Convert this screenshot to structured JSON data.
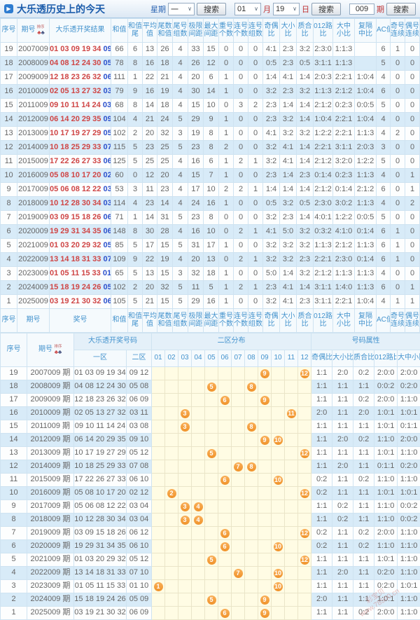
{
  "page": {
    "title": "大乐透历史上的今天",
    "logo_glyph": "▶"
  },
  "controls": {
    "week_label": "星期",
    "week_value": "一",
    "month_value": "01",
    "month_label": "月",
    "day_value": "19",
    "day_label": "日",
    "issue_value": "009",
    "issue_label": "期",
    "search_label": "搜索",
    "sort_label": "排序"
  },
  "table1": {
    "headers": [
      [
        "序号"
      ],
      [
        "期号"
      ],
      [
        "大乐透开奖结果"
      ],
      [
        "和值"
      ],
      [
        "和值",
        "尾"
      ],
      [
        "平均",
        "值"
      ],
      [
        "尾数",
        "和值"
      ],
      [
        "尾号",
        "组数"
      ],
      [
        "极限",
        "间距"
      ],
      [
        "最大",
        "间距"
      ],
      [
        "重号",
        "个数"
      ],
      [
        "连号",
        "个数"
      ],
      [
        "连号",
        "组数"
      ],
      [
        "奇偶",
        "比"
      ],
      [
        "大小",
        "比"
      ],
      [
        "质合",
        "比"
      ],
      [
        "012路",
        "比"
      ],
      [
        "大中",
        "小比"
      ],
      [
        "复隔",
        "中比"
      ],
      [
        "AC值"
      ],
      [
        "奇号",
        "连续"
      ],
      [
        "偶号",
        "连续"
      ]
    ],
    "footer_headers": [
      [
        "序号"
      ],
      [
        "期号"
      ],
      [
        "奖号"
      ],
      [
        "和值"
      ],
      [
        "和值",
        "尾"
      ],
      [
        "平均",
        "值"
      ],
      [
        "尾数",
        "和值"
      ],
      [
        "尾号",
        "组数"
      ],
      [
        "极限",
        "间距"
      ],
      [
        "最大",
        "间距"
      ],
      [
        "重号",
        "个数"
      ],
      [
        "连号",
        "个数"
      ],
      [
        "连号",
        "组数"
      ],
      [
        "奇偶",
        "比"
      ],
      [
        "大小",
        "比"
      ],
      [
        "质合",
        "比"
      ],
      [
        "012路",
        "比"
      ],
      [
        "大中",
        "小比"
      ],
      [
        "复隔",
        "中比"
      ],
      [
        "AC值"
      ],
      [
        "奇号",
        "连续"
      ],
      [
        "偶号",
        "连续"
      ]
    ],
    "rows": [
      {
        "seq": "19",
        "period": "2007009",
        "front": "01 03 09 19 34",
        "back": "09 12",
        "vals": [
          "66",
          "6",
          "13",
          "26",
          "4",
          "33",
          "15",
          "0",
          "0",
          "0",
          "4:1",
          "2:3",
          "3:2",
          "2:3:0",
          "1:1:3",
          "",
          "6",
          "1",
          "0"
        ]
      },
      {
        "seq": "18",
        "period": "2008009",
        "front": "04 08 12 24 30",
        "back": "05 08",
        "vals": [
          "78",
          "8",
          "16",
          "18",
          "4",
          "26",
          "12",
          "0",
          "0",
          "0",
          "0:5",
          "2:3",
          "0:5",
          "3:1:1",
          "1:1:3",
          "",
          "5",
          "0",
          "0"
        ]
      },
      {
        "seq": "17",
        "period": "2009009",
        "front": "12 18 23 26 32",
        "back": "06 09",
        "vals": [
          "111",
          "1",
          "22",
          "21",
          "4",
          "20",
          "6",
          "1",
          "0",
          "0",
          "1:4",
          "4:1",
          "1:4",
          "2:0:3",
          "2:2:1",
          "1:0:4",
          "4",
          "0",
          "0"
        ]
      },
      {
        "seq": "16",
        "period": "2010009",
        "front": "02 05 13 27 32",
        "back": "03 11",
        "vals": [
          "79",
          "9",
          "16",
          "19",
          "4",
          "30",
          "14",
          "1",
          "0",
          "0",
          "3:2",
          "2:3",
          "3:2",
          "1:1:3",
          "2:1:2",
          "1:0:4",
          "6",
          "0",
          "0"
        ]
      },
      {
        "seq": "15",
        "period": "2011009",
        "front": "09 10 11 14 24",
        "back": "03 08",
        "vals": [
          "68",
          "8",
          "14",
          "18",
          "4",
          "15",
          "10",
          "0",
          "3",
          "2",
          "2:3",
          "1:4",
          "1:4",
          "2:1:2",
          "0:2:3",
          "0:0:5",
          "5",
          "0",
          "0"
        ]
      },
      {
        "seq": "14",
        "period": "2012009",
        "front": "06 14 20 29 35",
        "back": "09 10",
        "vals": [
          "104",
          "4",
          "21",
          "24",
          "5",
          "29",
          "9",
          "1",
          "0",
          "0",
          "2:3",
          "3:2",
          "1:4",
          "1:0:4",
          "2:2:1",
          "1:0:4",
          "4",
          "0",
          "0"
        ]
      },
      {
        "seq": "13",
        "period": "2013009",
        "front": "10 17 19 27 29",
        "back": "05 12",
        "vals": [
          "102",
          "2",
          "20",
          "32",
          "3",
          "19",
          "8",
          "1",
          "0",
          "0",
          "4:1",
          "3:2",
          "3:2",
          "1:2:2",
          "2:2:1",
          "1:1:3",
          "4",
          "2",
          "0"
        ]
      },
      {
        "seq": "12",
        "period": "2014009",
        "front": "10 18 25 29 33",
        "back": "07 08",
        "vals": [
          "115",
          "5",
          "23",
          "25",
          "5",
          "23",
          "8",
          "2",
          "0",
          "0",
          "3:2",
          "4:1",
          "1:4",
          "2:2:1",
          "3:1:1",
          "2:0:3",
          "3",
          "0",
          "0"
        ]
      },
      {
        "seq": "11",
        "period": "2015009",
        "front": "17 22 26 27 33",
        "back": "06 10",
        "vals": [
          "125",
          "5",
          "25",
          "25",
          "4",
          "16",
          "6",
          "1",
          "2",
          "1",
          "3:2",
          "4:1",
          "1:4",
          "2:1:2",
          "3:2:0",
          "1:2:2",
          "5",
          "0",
          "0"
        ]
      },
      {
        "seq": "10",
        "period": "2016009",
        "front": "05 08 10 17 20",
        "back": "02 12",
        "vals": [
          "60",
          "0",
          "12",
          "20",
          "4",
          "15",
          "7",
          "1",
          "0",
          "0",
          "2:3",
          "1:4",
          "2:3",
          "0:1:4",
          "0:2:3",
          "1:1:3",
          "4",
          "0",
          "1"
        ]
      },
      {
        "seq": "9",
        "period": "2017009",
        "front": "05 06 08 12 22",
        "back": "03 04",
        "vals": [
          "53",
          "3",
          "11",
          "23",
          "4",
          "17",
          "10",
          "2",
          "2",
          "1",
          "1:4",
          "1:4",
          "1:4",
          "2:1:2",
          "0:1:4",
          "2:1:2",
          "6",
          "0",
          "1"
        ]
      },
      {
        "seq": "8",
        "period": "2018009",
        "front": "10 12 28 30 34",
        "back": "03 04",
        "vals": [
          "114",
          "4",
          "23",
          "14",
          "4",
          "24",
          "16",
          "1",
          "0",
          "0",
          "0:5",
          "3:2",
          "0:5",
          "2:3:0",
          "3:0:2",
          "1:1:3",
          "4",
          "0",
          "2"
        ]
      },
      {
        "seq": "7",
        "period": "2019009",
        "front": "03 09 15 18 26",
        "back": "06 12",
        "vals": [
          "71",
          "1",
          "14",
          "31",
          "5",
          "23",
          "8",
          "0",
          "0",
          "0",
          "3:2",
          "2:3",
          "1:4",
          "4:0:1",
          "1:2:2",
          "0:0:5",
          "5",
          "0",
          "0"
        ]
      },
      {
        "seq": "6",
        "period": "2020009",
        "front": "19 29 31 34 35",
        "back": "06 10",
        "vals": [
          "148",
          "8",
          "30",
          "28",
          "4",
          "16",
          "10",
          "0",
          "2",
          "1",
          "4:1",
          "5:0",
          "3:2",
          "0:3:2",
          "4:1:0",
          "0:1:4",
          "6",
          "1",
          "0"
        ]
      },
      {
        "seq": "5",
        "period": "2021009",
        "front": "01 03 20 29 32",
        "back": "05 12",
        "vals": [
          "85",
          "5",
          "17",
          "15",
          "5",
          "31",
          "17",
          "1",
          "0",
          "0",
          "3:2",
          "3:2",
          "3:2",
          "1:1:3",
          "2:1:2",
          "1:1:3",
          "6",
          "1",
          "0"
        ]
      },
      {
        "seq": "4",
        "period": "2022009",
        "front": "13 14 18 31 33",
        "back": "07 10",
        "vals": [
          "109",
          "9",
          "22",
          "19",
          "4",
          "20",
          "13",
          "0",
          "2",
          "1",
          "3:2",
          "3:2",
          "2:3",
          "2:2:1",
          "2:3:0",
          "0:1:4",
          "6",
          "1",
          "0"
        ]
      },
      {
        "seq": "3",
        "period": "2023009",
        "front": "01 05 11 15 33",
        "back": "01 10",
        "vals": [
          "65",
          "5",
          "13",
          "15",
          "3",
          "32",
          "18",
          "1",
          "0",
          "0",
          "5:0",
          "1:4",
          "3:2",
          "2:1:2",
          "1:1:3",
          "1:1:3",
          "4",
          "0",
          "0"
        ]
      },
      {
        "seq": "2",
        "period": "2024009",
        "front": "15 18 19 24 26",
        "back": "05 09",
        "vals": [
          "102",
          "2",
          "20",
          "32",
          "5",
          "11",
          "5",
          "1",
          "2",
          "1",
          "2:3",
          "4:1",
          "1:4",
          "3:1:1",
          "1:4:0",
          "1:1:3",
          "6",
          "0",
          "1"
        ]
      },
      {
        "seq": "1",
        "period": "2025009",
        "front": "03 19 21 30 32",
        "back": "06 09",
        "vals": [
          "105",
          "5",
          "21",
          "15",
          "5",
          "29",
          "16",
          "1",
          "0",
          "0",
          "3:2",
          "4:1",
          "2:3",
          "3:1:1",
          "2:2:1",
          "1:0:4",
          "4",
          "1",
          "1"
        ]
      }
    ]
  },
  "table2": {
    "group_headers": {
      "seq": "序号",
      "period": "期号",
      "result": "大乐透开奖号码",
      "zone2_dist": "二区分布",
      "attrs": "号码属性"
    },
    "sub_headers": {
      "zone1": "一区",
      "zone2": "二区",
      "ball_cols": [
        "01",
        "02",
        "03",
        "04",
        "05",
        "06",
        "07",
        "08",
        "09",
        "10",
        "11",
        "12"
      ],
      "attr_cols": [
        "奇偶比",
        "大小比",
        "质合比",
        "012路比",
        "大中小比"
      ]
    },
    "period_suffix": "期",
    "rows": [
      {
        "seq": "19",
        "period": "2007009",
        "zone1": "01 03 09 19 34",
        "zone2": "09 12",
        "balls": [
          9,
          12
        ],
        "attrs": [
          "1:1",
          "2:0",
          "0:2",
          "2:0:0",
          "2:0:0"
        ]
      },
      {
        "seq": "18",
        "period": "2008009",
        "zone1": "04 08 12 24 30",
        "zone2": "05 08",
        "balls": [
          5,
          8
        ],
        "attrs": [
          "1:1",
          "1:1",
          "1:1",
          "0:0:2",
          "0:2:0"
        ]
      },
      {
        "seq": "17",
        "period": "2009009",
        "zone1": "12 18 23 26 32",
        "zone2": "06 09",
        "balls": [
          6,
          9
        ],
        "attrs": [
          "1:1",
          "1:1",
          "0:2",
          "2:0:0",
          "1:1:0"
        ]
      },
      {
        "seq": "16",
        "period": "2010009",
        "zone1": "02 05 13 27 32",
        "zone2": "03 11",
        "balls": [
          3,
          11
        ],
        "attrs": [
          "2:0",
          "1:1",
          "2:0",
          "1:0:1",
          "1:0:1"
        ]
      },
      {
        "seq": "15",
        "period": "2011009",
        "zone1": "09 10 11 14 24",
        "zone2": "03 08",
        "balls": [
          3,
          8
        ],
        "attrs": [
          "1:1",
          "1:1",
          "1:1",
          "1:0:1",
          "0:1:1"
        ]
      },
      {
        "seq": "14",
        "period": "2012009",
        "zone1": "06 14 20 29 35",
        "zone2": "09 10",
        "balls": [
          9,
          10
        ],
        "attrs": [
          "1:1",
          "2:0",
          "0:2",
          "1:1:0",
          "2:0:0"
        ]
      },
      {
        "seq": "13",
        "period": "2013009",
        "zone1": "10 17 19 27 29",
        "zone2": "05 12",
        "balls": [
          5,
          12
        ],
        "attrs": [
          "1:1",
          "1:1",
          "1:1",
          "1:0:1",
          "1:1:0"
        ]
      },
      {
        "seq": "12",
        "period": "2014009",
        "zone1": "10 18 25 29 33",
        "zone2": "07 08",
        "balls": [
          7,
          8
        ],
        "attrs": [
          "1:1",
          "2:0",
          "1:1",
          "0:1:1",
          "0:2:0"
        ]
      },
      {
        "seq": "11",
        "period": "2015009",
        "zone1": "17 22 26 27 33",
        "zone2": "06 10",
        "balls": [
          6,
          10
        ],
        "attrs": [
          "0:2",
          "1:1",
          "0:2",
          "1:1:0",
          "1:1:0"
        ]
      },
      {
        "seq": "10",
        "period": "2016009",
        "zone1": "05 08 10 17 20",
        "zone2": "02 12",
        "balls": [
          2,
          12
        ],
        "attrs": [
          "0:2",
          "1:1",
          "1:1",
          "1:0:1",
          "1:0:1"
        ]
      },
      {
        "seq": "9",
        "period": "2017009",
        "zone1": "05 06 08 12 22",
        "zone2": "03 04",
        "balls": [
          3,
          4
        ],
        "attrs": [
          "1:1",
          "0:2",
          "1:1",
          "1:1:0",
          "0:0:2"
        ]
      },
      {
        "seq": "8",
        "period": "2018009",
        "zone1": "10 12 28 30 34",
        "zone2": "03 04",
        "balls": [
          3,
          4
        ],
        "attrs": [
          "1:1",
          "0:2",
          "1:1",
          "1:1:0",
          "0:0:2"
        ]
      },
      {
        "seq": "7",
        "period": "2019009",
        "zone1": "03 09 15 18 26",
        "zone2": "06 12",
        "balls": [
          6,
          12
        ],
        "attrs": [
          "0:2",
          "1:1",
          "0:2",
          "2:0:0",
          "1:1:0"
        ]
      },
      {
        "seq": "6",
        "period": "2020009",
        "zone1": "19 29 31 34 35",
        "zone2": "06 10",
        "balls": [
          6,
          10
        ],
        "attrs": [
          "0:2",
          "1:1",
          "0:2",
          "1:1:0",
          "1:1:0"
        ]
      },
      {
        "seq": "5",
        "period": "2021009",
        "zone1": "01 03 20 29 32",
        "zone2": "05 12",
        "balls": [
          5,
          12
        ],
        "attrs": [
          "1:1",
          "1:1",
          "1:1",
          "1:0:1",
          "1:1:0"
        ]
      },
      {
        "seq": "4",
        "period": "2022009",
        "zone1": "13 14 18 31 33",
        "zone2": "07 10",
        "balls": [
          7,
          10
        ],
        "attrs": [
          "1:1",
          "2:0",
          "1:1",
          "0:2:0",
          "1:1:0"
        ]
      },
      {
        "seq": "3",
        "period": "2023009",
        "zone1": "01 05 11 15 33",
        "zone2": "01 10",
        "balls": [
          1,
          10
        ],
        "attrs": [
          "1:1",
          "1:1",
          "1:1",
          "0:2:0",
          "1:0:1"
        ]
      },
      {
        "seq": "2",
        "period": "2024009",
        "zone1": "15 18 19 24 26",
        "zone2": "05 09",
        "balls": [
          5,
          9
        ],
        "attrs": [
          "2:0",
          "1:1",
          "1:1",
          "1:0:1",
          "1:1:0"
        ]
      },
      {
        "seq": "1",
        "period": "2025009",
        "zone1": "03 19 21 30 32",
        "zone2": "06 09",
        "balls": [
          6,
          9
        ],
        "attrs": [
          "1:1",
          "1:1",
          "0:2",
          "2:0:0",
          "1:1:0"
        ]
      }
    ]
  },
  "watermark": {
    "line1": "彩宝贝",
    "line2": "www.78500.cn"
  },
  "colors": {
    "accent_blue": "#1b5cab",
    "header_text": "#4292cd",
    "alt_row": "#d8ebf8",
    "front_red": "#cf4545",
    "back_blue": "#2b50cc",
    "ball_orange": "#f0922a",
    "ball_zone_bg": "#fffce4"
  }
}
